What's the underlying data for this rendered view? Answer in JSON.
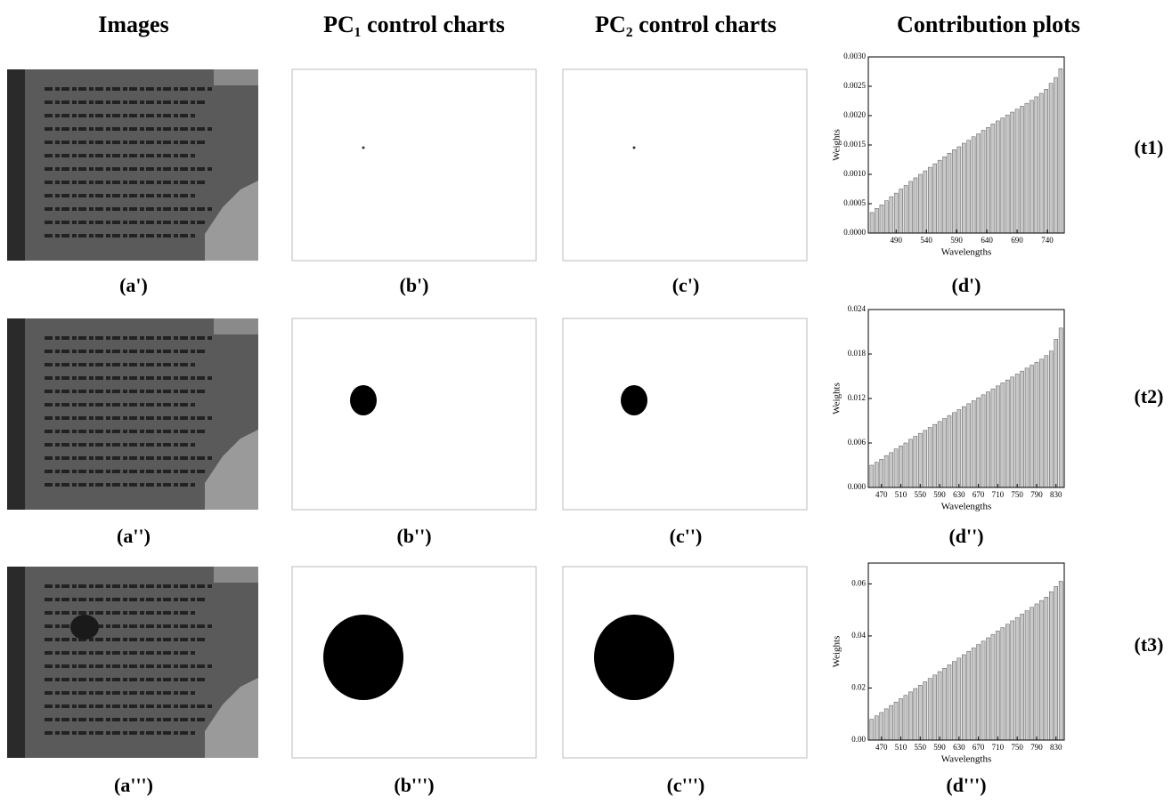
{
  "figure": {
    "headers": [
      "Images",
      "PC₁ control charts",
      "PC₂ control charts",
      "Contribution plots"
    ],
    "rows": [
      {
        "labels": [
          "(a')",
          "(b')",
          "(c')",
          "(d')"
        ],
        "tag": "(t1)"
      },
      {
        "labels": [
          "(a'')",
          "(b'')",
          "(c'')",
          "(d'')"
        ],
        "tag": "(t2)"
      },
      {
        "labels": [
          "(a''')",
          "(b''')",
          "(c''')",
          "(d''')"
        ],
        "tag": "(t3)"
      }
    ]
  },
  "chart_data": [
    {
      "type": "bar",
      "y_label": "Weights",
      "x_label": "Wavelengths",
      "color": "#c8c8c8",
      "x": [
        450,
        458,
        466,
        474,
        482,
        490,
        498,
        506,
        514,
        522,
        530,
        538,
        546,
        554,
        562,
        570,
        578,
        586,
        594,
        602,
        610,
        618,
        626,
        634,
        642,
        650,
        658,
        666,
        674,
        682,
        690,
        698,
        706,
        714,
        722,
        730,
        738,
        746,
        754,
        762
      ],
      "values": [
        0.00035,
        0.00042,
        0.00048,
        0.00055,
        0.00062,
        0.00068,
        0.00075,
        0.00081,
        0.00088,
        0.00094,
        0.001,
        0.00106,
        0.00112,
        0.00118,
        0.00124,
        0.0013,
        0.00136,
        0.00142,
        0.00147,
        0.00153,
        0.00158,
        0.00164,
        0.00169,
        0.00175,
        0.0018,
        0.00186,
        0.00191,
        0.00196,
        0.00201,
        0.00206,
        0.00211,
        0.00216,
        0.00221,
        0.00226,
        0.00232,
        0.00238,
        0.00245,
        0.00255,
        0.00265,
        0.0028
      ],
      "xlim": [
        444,
        768
      ],
      "xticks": [
        490,
        540,
        590,
        640,
        690,
        740
      ],
      "ylim": [
        0,
        0.003
      ],
      "yticks": [
        {
          "value": 0,
          "label": "0.0000"
        },
        0.0005,
        {
          "value": 0.001,
          "label": "0.0010"
        },
        0.0015,
        {
          "value": 0.002,
          "label": "0.0020"
        },
        0.0025,
        {
          "value": 0.003,
          "label": "0.0030"
        }
      ]
    },
    {
      "type": "bar",
      "y_label": "Weights",
      "x_label": "Wavelengths",
      "color": "#c8c8c8",
      "x": [
        450,
        460,
        470,
        480,
        490,
        500,
        510,
        520,
        530,
        540,
        550,
        560,
        570,
        580,
        590,
        600,
        610,
        620,
        630,
        640,
        650,
        660,
        670,
        680,
        690,
        700,
        710,
        720,
        730,
        740,
        750,
        760,
        770,
        780,
        790,
        800,
        810,
        820,
        830,
        840
      ],
      "values": [
        0.003,
        0.0034,
        0.0038,
        0.0043,
        0.0047,
        0.0052,
        0.0056,
        0.006,
        0.0065,
        0.0069,
        0.0073,
        0.0077,
        0.0081,
        0.0085,
        0.0089,
        0.0093,
        0.0097,
        0.0101,
        0.0105,
        0.0109,
        0.0113,
        0.0117,
        0.0121,
        0.0125,
        0.0129,
        0.0133,
        0.0137,
        0.0141,
        0.0145,
        0.0149,
        0.0153,
        0.0157,
        0.0161,
        0.0165,
        0.0169,
        0.0173,
        0.0178,
        0.0184,
        0.02,
        0.0215
      ],
      "xlim": [
        443,
        847
      ],
      "xticks": [
        470,
        510,
        550,
        590,
        630,
        670,
        710,
        750,
        790,
        830
      ],
      "ylim": [
        0,
        0.024
      ],
      "yticks": [
        {
          "value": 0,
          "label": "0.000"
        },
        0.006,
        0.012,
        0.018,
        0.024
      ]
    },
    {
      "type": "bar",
      "y_label": "Weights",
      "x_label": "Wavelengths",
      "color": "#c8c8c8",
      "x": [
        450,
        460,
        470,
        480,
        490,
        500,
        510,
        520,
        530,
        540,
        550,
        560,
        570,
        580,
        590,
        600,
        610,
        620,
        630,
        640,
        650,
        660,
        670,
        680,
        690,
        700,
        710,
        720,
        730,
        740,
        750,
        760,
        770,
        780,
        790,
        800,
        810,
        820,
        830,
        840
      ],
      "values": [
        0.008,
        0.0093,
        0.0106,
        0.012,
        0.0133,
        0.0146,
        0.0159,
        0.0172,
        0.0185,
        0.0198,
        0.0211,
        0.0224,
        0.0237,
        0.025,
        0.0263,
        0.0276,
        0.0289,
        0.0302,
        0.0315,
        0.0328,
        0.0341,
        0.0354,
        0.0367,
        0.038,
        0.0393,
        0.0406,
        0.0419,
        0.0432,
        0.0445,
        0.0458,
        0.0471,
        0.0484,
        0.0497,
        0.051,
        0.0523,
        0.0536,
        0.0549,
        0.057,
        0.059,
        0.061
      ],
      "xlim": [
        443,
        847
      ],
      "xticks": [
        470,
        510,
        550,
        590,
        630,
        670,
        710,
        750,
        790,
        830
      ],
      "ylim": [
        0,
        0.068
      ],
      "yticks": [
        {
          "value": 0,
          "label": "0.00"
        },
        0.02,
        0.04,
        0.06
      ]
    }
  ]
}
